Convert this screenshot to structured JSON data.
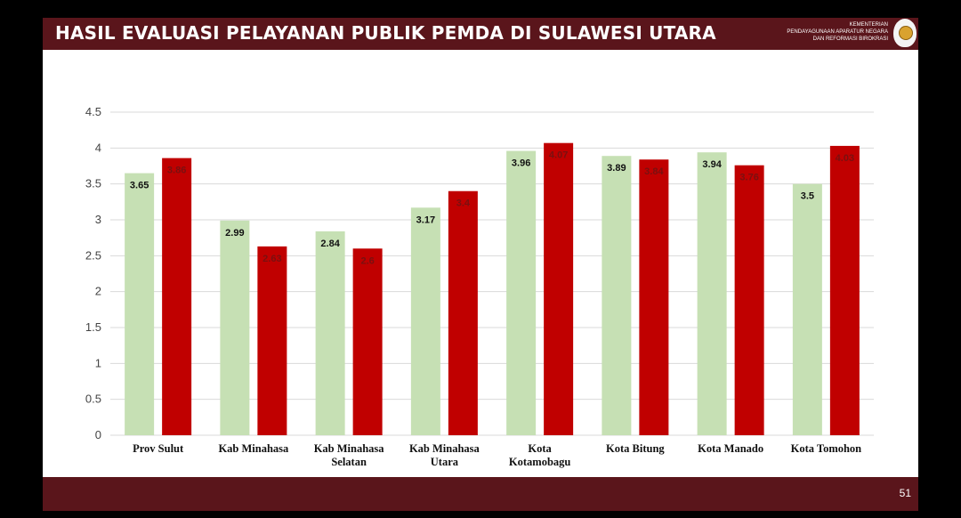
{
  "header": {
    "title": "HASIL EVALUASI PELAYANAN PUBLIK PEMDA DI SULAWESI UTARA",
    "ministry_lines": [
      "KEMENTERIAN",
      "PENDAYAGUNAAN APARATUR NEGARA",
      "DAN REFORMASI BIROKRASI"
    ]
  },
  "footer": {
    "page_number": "51"
  },
  "colors": {
    "header_bg": "#5a151b",
    "series_green": "#c6e0b4",
    "series_red": "#c00000"
  },
  "chart_data": {
    "type": "bar",
    "title": "",
    "xlabel": "",
    "ylabel": "",
    "ylim": [
      0,
      4.5
    ],
    "yticks": [
      "0",
      "0.5",
      "1",
      "1.5",
      "2",
      "2.5",
      "3",
      "3.5",
      "4",
      "4.5"
    ],
    "grid": true,
    "legend": "none",
    "categories": [
      [
        "Prov Sulut"
      ],
      [
        "Kab Minahasa"
      ],
      [
        "Kab Minahasa",
        "Selatan"
      ],
      [
        "Kab Minahasa",
        "Utara"
      ],
      [
        "Kota",
        "Kotamobagu"
      ],
      [
        "Kota Bitung"
      ],
      [
        "Kota Manado"
      ],
      [
        "Kota Tomohon"
      ]
    ],
    "series": [
      {
        "color": "#c6e0b4",
        "values": [
          3.65,
          2.99,
          2.84,
          3.17,
          3.96,
          3.89,
          3.94,
          3.5
        ],
        "labels": [
          "3.65",
          "2.99",
          "2.84",
          "3.17",
          "3.96",
          "3.89",
          "3.94",
          "3.5"
        ]
      },
      {
        "color": "#c00000",
        "values": [
          3.86,
          2.63,
          2.6,
          3.4,
          4.07,
          3.84,
          3.76,
          4.03
        ],
        "labels": [
          "3.86",
          "2.63",
          "2.6",
          "3.4",
          "4.07",
          "3.84",
          "3.76",
          "4.03"
        ]
      }
    ]
  }
}
